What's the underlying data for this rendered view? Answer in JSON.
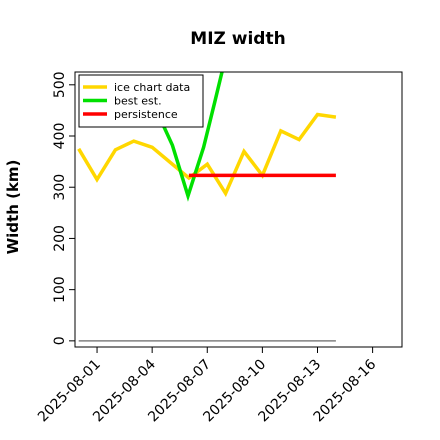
{
  "chart_data": {
    "type": "line",
    "title": "MIZ width",
    "xlabel": "",
    "ylabel": "Width (km)",
    "x_ticks": [
      "2025-08-01",
      "2025-08-04",
      "2025-08-07",
      "2025-08-10",
      "2025-08-13",
      "2025-08-16"
    ],
    "x_tick_days": [
      1,
      4,
      7,
      10,
      13,
      16
    ],
    "xlim": [
      -0.2,
      17.6
    ],
    "y_ticks": [
      0,
      100,
      200,
      300,
      400,
      500
    ],
    "ylim": [
      -12,
      525
    ],
    "grid": false,
    "legend_position": "top-left",
    "reference_line": {
      "color": "#808080",
      "x": [
        0,
        14
      ],
      "y": [
        0,
        0
      ]
    },
    "series": [
      {
        "name": "ice chart data",
        "color": "#FFD700",
        "x": [
          0,
          1,
          2,
          3,
          4,
          5,
          6,
          7,
          8,
          9,
          10,
          11,
          12,
          13,
          14
        ],
        "y": [
          375,
          315,
          373,
          390,
          378,
          348,
          318,
          345,
          288,
          370,
          323,
          410,
          393,
          442,
          437
        ]
      },
      {
        "name": "best est.",
        "color": "#00E000",
        "x": [
          4.55,
          5.1,
          5.95,
          6.8,
          7.4,
          7.8
        ],
        "y": [
          425,
          382,
          283,
          378,
          465,
          525
        ]
      },
      {
        "name": "persistence",
        "color": "#FF0000",
        "x": [
          6,
          14
        ],
        "y": [
          323,
          323
        ]
      }
    ]
  }
}
